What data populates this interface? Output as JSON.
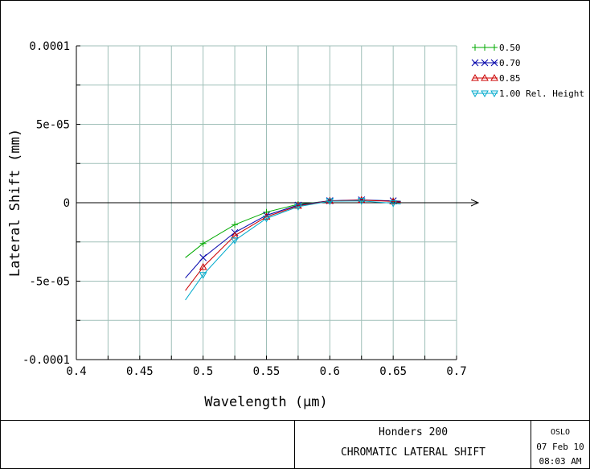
{
  "chart_data": {
    "type": "line",
    "title": "",
    "xlabel": "Wavelength (μm)",
    "ylabel": "Lateral Shift (mm)",
    "xlim": [
      0.4,
      0.7
    ],
    "ylim": [
      -0.0001,
      0.0001
    ],
    "x_ticks": [
      "0.4",
      "0.45",
      "0.5",
      "0.55",
      "0.6",
      "0.65",
      "0.7"
    ],
    "y_ticks": [
      "-0.0001",
      "-5e-05",
      "0",
      "5e-05",
      "0.0001"
    ],
    "grid": true,
    "legend_position": "top-right",
    "series": [
      {
        "name": "0.50",
        "color": "#00aa00",
        "marker": "plus",
        "x": [
          0.486,
          0.5,
          0.525,
          0.55,
          0.575,
          0.6,
          0.625,
          0.65,
          0.656
        ],
        "y": [
          -3.5e-05,
          -2.6e-05,
          -1.4e-05,
          -6e-06,
          -1e-06,
          1.2e-06,
          1.6e-06,
          1.2e-06,
          1e-06
        ]
      },
      {
        "name": "0.70",
        "color": "#0000aa",
        "marker": "x",
        "x": [
          0.486,
          0.5,
          0.525,
          0.55,
          0.575,
          0.6,
          0.625,
          0.65,
          0.656
        ],
        "y": [
          -4.8e-05,
          -3.5e-05,
          -1.9e-05,
          -8e-06,
          -1.5e-06,
          1.3e-06,
          1.8e-06,
          1.2e-06,
          8e-07
        ]
      },
      {
        "name": "0.85",
        "color": "#cc0000",
        "marker": "triangle",
        "x": [
          0.486,
          0.5,
          0.525,
          0.55,
          0.575,
          0.6,
          0.625,
          0.65,
          0.656
        ],
        "y": [
          -5.6e-05,
          -4.1e-05,
          -2.1e-05,
          -9e-06,
          -2e-06,
          1.2e-06,
          1.7e-06,
          8e-07,
          4e-07
        ]
      },
      {
        "name": "1.00 Rel. Height",
        "color": "#00aacc",
        "marker": "triangle-down",
        "x": [
          0.486,
          0.5,
          0.525,
          0.55,
          0.575,
          0.6,
          0.625,
          0.65,
          0.656
        ],
        "y": [
          -6.2e-05,
          -4.6e-05,
          -2.4e-05,
          -1e-05,
          -2.5e-06,
          1e-06,
          1.2e-06,
          -3e-07,
          -8e-07
        ]
      }
    ]
  },
  "footer": {
    "lens_name": "Honders 200",
    "plot_name": "CHROMATIC LATERAL SHIFT",
    "program": "OSLO",
    "date": "07 Feb 10",
    "time": "08:03 AM"
  }
}
